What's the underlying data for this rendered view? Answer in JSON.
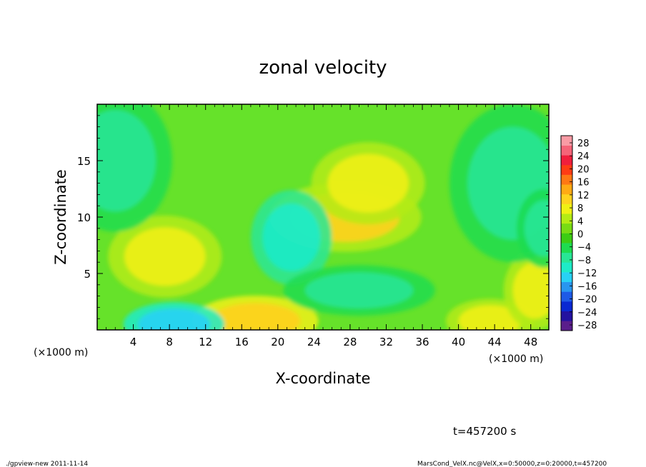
{
  "chart_data": {
    "type": "heatmap",
    "title": "zonal velocity",
    "xlabel": "X-coordinate",
    "ylabel": "Z-coordinate",
    "x_units": "(×1000 m)",
    "x_units_left": "(×1000 m)",
    "x_units_right": "(×1000 m)",
    "xlim": [
      0,
      50
    ],
    "ylim": [
      0,
      20
    ],
    "x_ticks": [
      4,
      8,
      12,
      16,
      20,
      24,
      28,
      32,
      36,
      40,
      44,
      48
    ],
    "y_ticks": [
      5,
      10,
      15
    ],
    "colorbar": {
      "labels": [
        28,
        24,
        20,
        16,
        12,
        8,
        4,
        0,
        -4,
        -8,
        -12,
        -16,
        -20,
        -24,
        -28
      ],
      "range": [
        -30,
        30
      ],
      "colors": [
        "#5a1e8c",
        "#2412a0",
        "#0a28d2",
        "#1e5ae6",
        "#2896f0",
        "#28d2f5",
        "#1eebc8",
        "#28e696",
        "#1edc50",
        "#3ccd14",
        "#78dc14",
        "#b4eb14",
        "#f0f014",
        "#ffd21e",
        "#ffaa14",
        "#ff7814",
        "#ff3c14",
        "#f01e3c",
        "#f56478",
        "#fa9ba5"
      ]
    },
    "features": [
      {
        "x": 17.5,
        "z": 0.8,
        "value": 11,
        "label": "positive maximum near bottom"
      },
      {
        "x": 27.5,
        "z": 10.0,
        "value": 9,
        "label": "positive core"
      },
      {
        "x": 30.0,
        "z": 13.0,
        "value": 7,
        "label": "positive lobe"
      },
      {
        "x": 7.5,
        "z": 6.5,
        "value": 7,
        "label": "positive lobe"
      },
      {
        "x": 43.5,
        "z": 0.8,
        "value": 8,
        "label": "positive near bottom"
      },
      {
        "x": 48.5,
        "z": 3.5,
        "value": 8,
        "label": "positive near right edge"
      },
      {
        "x": 8.5,
        "z": 0.5,
        "value": -14,
        "label": "negative minimum near bottom"
      },
      {
        "x": 21.5,
        "z": 8.2,
        "value": -11,
        "label": "negative core"
      },
      {
        "x": 29.0,
        "z": 3.5,
        "value": -9,
        "label": "negative band"
      },
      {
        "x": 2.0,
        "z": 15.0,
        "value": -8,
        "label": "negative upper left"
      },
      {
        "x": 46.0,
        "z": 13.0,
        "value": -8,
        "label": "negative upper right"
      },
      {
        "x": 49.5,
        "z": 9.0,
        "value": -8,
        "label": "negative right edge"
      }
    ]
  },
  "footer": {
    "time_label": "t=457200 s",
    "program": "./gpview-new  2011-11-14",
    "source": "MarsCond_VelX.nc@VelX,x=0:50000,z=0:20000,t=457200"
  }
}
